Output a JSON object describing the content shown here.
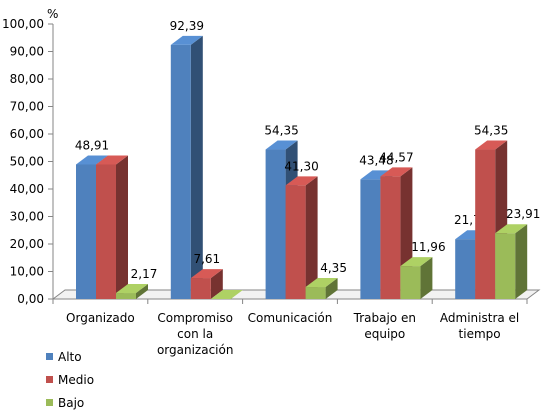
{
  "chart_data": {
    "type": "bar",
    "unit_label": "%",
    "categories": [
      [
        "Organizado"
      ],
      [
        "Compromiso",
        "con la",
        "organización"
      ],
      [
        "Comunicación"
      ],
      [
        "Trabajo en",
        "equipo"
      ],
      [
        "Administra el",
        "tiempo"
      ]
    ],
    "series": [
      {
        "name": "Alto",
        "color": "#4F81BD",
        "values": [
          48.91,
          92.39,
          54.35,
          43.48,
          21.74
        ],
        "labels": [
          "48,91",
          "92,39",
          "54,35",
          "43,48",
          "21,74"
        ]
      },
      {
        "name": "Medio",
        "color": "#C0504D",
        "values": [
          48.91,
          7.61,
          41.3,
          44.57,
          54.35
        ],
        "labels": [
          "",
          "7,61",
          "41,30",
          "44,57",
          "54,35"
        ]
      },
      {
        "name": "Bajo",
        "color": "#9BBB59",
        "values": [
          2.17,
          0.0,
          4.35,
          11.96,
          23.91
        ],
        "labels": [
          "2,17",
          "",
          "4,35",
          "11,96",
          "23,91"
        ]
      }
    ],
    "ylim": [
      0,
      100
    ],
    "yticks": [
      "0,00",
      "10,00",
      "20,00",
      "30,00",
      "40,00",
      "50,00",
      "60,00",
      "70,00",
      "80,00",
      "90,00",
      "100,00"
    ],
    "grid": false,
    "legend_position": "bottom-left"
  }
}
